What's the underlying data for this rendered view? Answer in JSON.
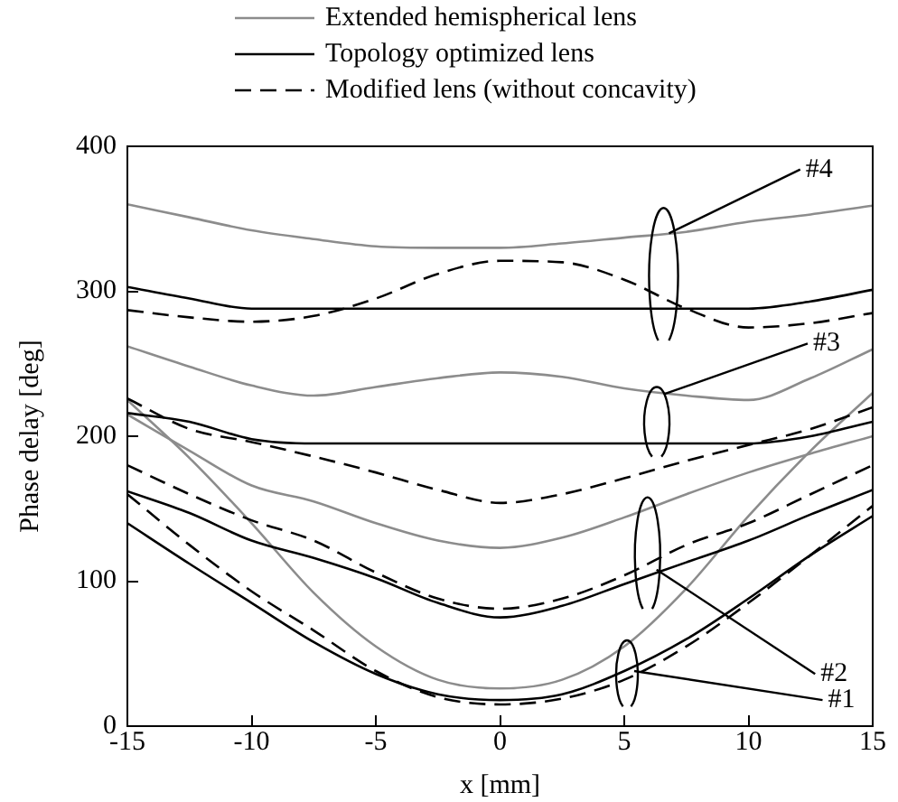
{
  "chart_data": {
    "type": "line",
    "xlabel": "x [mm]",
    "ylabel": "Phase delay [deg]",
    "x": [
      -15,
      -12.5,
      -10,
      -7.5,
      -5,
      -2.5,
      0,
      2.5,
      5,
      7.5,
      10,
      12.5,
      15
    ],
    "xlim": [
      -15,
      15
    ],
    "xticks": [
      -15,
      -10,
      -5,
      0,
      5,
      10,
      15
    ],
    "ylim": [
      0,
      400
    ],
    "yticks": [
      0,
      100,
      200,
      300,
      400
    ],
    "grid": false,
    "legend": "top",
    "marker": "none",
    "series": [
      {
        "name": "Extended hemispherical lens",
        "color": "#8c8c8c",
        "line_style": "solid",
        "values": [
          360,
          351,
          342,
          336,
          331,
          330,
          330,
          333,
          337,
          341,
          348,
          353,
          359
        ]
      },
      {
        "name": "Topology optimized lens",
        "color": "#000000",
        "line_style": "solid",
        "values": [
          303,
          295,
          288,
          288,
          288,
          288,
          288,
          288,
          288,
          288,
          288,
          293,
          301
        ]
      },
      {
        "name": "Modified lens (without concavity)",
        "color": "#000000",
        "line_style": "dashed",
        "values": [
          287,
          282,
          279,
          283,
          295,
          312,
          321,
          320,
          308,
          288,
          275,
          278,
          285
        ]
      },
      {
        "color": "#8c8c8c",
        "line_style": "solid",
        "values": [
          262,
          248,
          235,
          228,
          234,
          240,
          244,
          241,
          233,
          228,
          225,
          240,
          260
        ]
      },
      {
        "color": "#000000",
        "line_style": "solid",
        "values": [
          216,
          210,
          198,
          195,
          195,
          195,
          195,
          195,
          195,
          195,
          195,
          200,
          210
        ]
      },
      {
        "color": "#000000",
        "line_style": "dashed",
        "values": [
          226,
          205,
          196,
          186,
          175,
          163,
          154,
          160,
          171,
          183,
          194,
          205,
          220
        ]
      },
      {
        "color": "#8c8c8c",
        "line_style": "solid",
        "values": [
          215,
          190,
          166,
          155,
          140,
          128,
          123,
          130,
          144,
          160,
          175,
          188,
          200
        ]
      },
      {
        "color": "#000000",
        "line_style": "dashed",
        "values": [
          180,
          160,
          142,
          128,
          106,
          88,
          81,
          88,
          104,
          125,
          140,
          160,
          180
        ]
      },
      {
        "color": "#000000",
        "line_style": "solid",
        "values": [
          162,
          147,
          128,
          116,
          102,
          85,
          75,
          83,
          98,
          113,
          128,
          146,
          163
        ]
      },
      {
        "color": "#8c8c8c",
        "line_style": "solid",
        "values": [
          225,
          185,
          140,
          92,
          55,
          32,
          26,
          32,
          55,
          95,
          145,
          190,
          230
        ]
      },
      {
        "color": "#000000",
        "line_style": "solid",
        "values": [
          140,
          112,
          85,
          58,
          36,
          22,
          18,
          22,
          38,
          60,
          88,
          118,
          145
        ]
      },
      {
        "color": "#000000",
        "line_style": "dashed",
        "values": [
          160,
          125,
          93,
          66,
          38,
          20,
          15,
          19,
          32,
          55,
          85,
          118,
          152
        ]
      }
    ],
    "annotations": [
      {
        "text": "#4",
        "x": 6.8,
        "y": 340
      },
      {
        "text": "#3",
        "x": 6.6,
        "y": 229
      },
      {
        "text": "#2",
        "x": 6.3,
        "y": 108
      },
      {
        "text": "#1",
        "x": 5.4,
        "y": 38
      }
    ]
  }
}
